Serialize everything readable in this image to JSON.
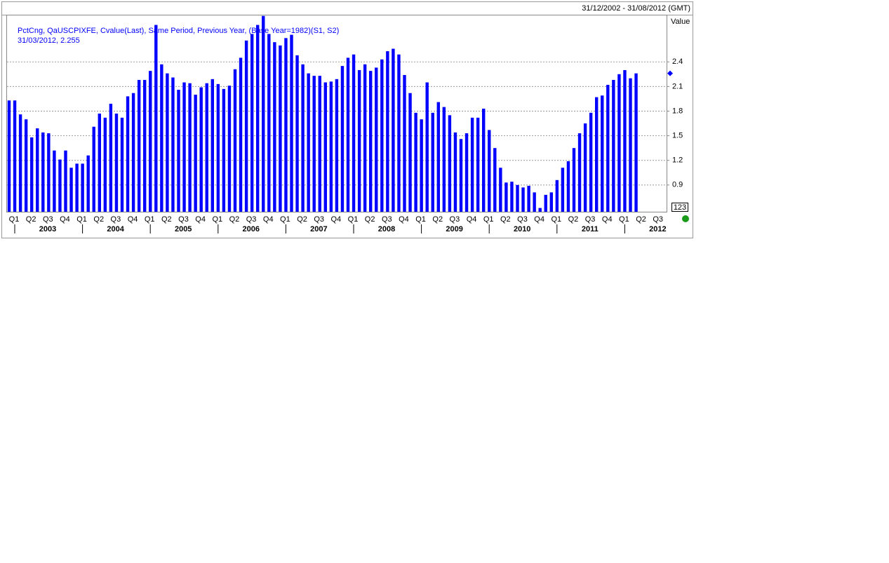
{
  "chart_data": {
    "type": "bar",
    "date_range": "31/12/2002 - 31/08/2012 (GMT)",
    "legend_text": "PctCng, QaUSCPIXFE, Cvalue(Last), Same Period, Previous Year, (Base Year=1982)(S1, S2)",
    "last_point_text": "31/03/2012, 2.255",
    "y_axis_label": "Value",
    "axis_box_label": "123",
    "color": "#0000ff",
    "values": [
      1.93,
      1.93,
      1.76,
      1.7,
      1.48,
      1.59,
      1.54,
      1.53,
      1.32,
      1.21,
      1.32,
      1.11,
      1.16,
      1.16,
      1.26,
      1.61,
      1.77,
      1.72,
      1.89,
      1.77,
      1.72,
      1.98,
      2.02,
      2.18,
      2.18,
      2.29,
      2.85,
      2.37,
      2.26,
      2.21,
      2.06,
      2.15,
      2.14,
      2.0,
      2.09,
      2.14,
      2.19,
      2.13,
      2.07,
      2.11,
      2.31,
      2.45,
      2.66,
      2.74,
      2.85,
      2.96,
      2.74,
      2.64,
      2.6,
      2.69,
      2.73,
      2.48,
      2.37,
      2.26,
      2.23,
      2.23,
      2.15,
      2.16,
      2.19,
      2.35,
      2.45,
      2.49,
      2.3,
      2.37,
      2.29,
      2.33,
      2.43,
      2.53,
      2.56,
      2.49,
      2.24,
      2.02,
      1.78,
      1.7,
      2.15,
      1.78,
      1.91,
      1.85,
      1.75,
      1.54,
      1.46,
      1.53,
      1.72,
      1.72,
      1.83,
      1.57,
      1.35,
      1.11,
      0.93,
      0.94,
      0.9,
      0.87,
      0.89,
      0.81,
      0.62,
      0.78,
      0.81,
      0.96,
      1.11,
      1.19,
      1.35,
      1.53,
      1.65,
      1.78,
      1.97,
      1.99,
      2.12,
      2.18,
      2.25,
      2.3,
      2.2,
      2.26
    ],
    "quarters": [
      "Q1",
      "Q2",
      "Q3",
      "Q4",
      "Q1",
      "Q2",
      "Q3",
      "Q4",
      "Q1",
      "Q2",
      "Q3",
      "Q4",
      "Q1",
      "Q2",
      "Q3",
      "Q4",
      "Q1",
      "Q2",
      "Q3",
      "Q4",
      "Q1",
      "Q2",
      "Q3",
      "Q4",
      "Q1",
      "Q2",
      "Q3",
      "Q4",
      "Q1",
      "Q2",
      "Q3",
      "Q4",
      "Q1",
      "Q2",
      "Q3",
      "Q4",
      "Q1",
      "Q2",
      "Q3"
    ],
    "years": [
      "2003",
      "2004",
      "2005",
      "2006",
      "2007",
      "2008",
      "2009",
      "2010",
      "2011",
      "2012"
    ],
    "ylim": [
      0.574,
      2.966
    ],
    "yticks": [
      0.9,
      1.2,
      1.5,
      1.8,
      2.1,
      2.4
    ],
    "grid": true
  }
}
